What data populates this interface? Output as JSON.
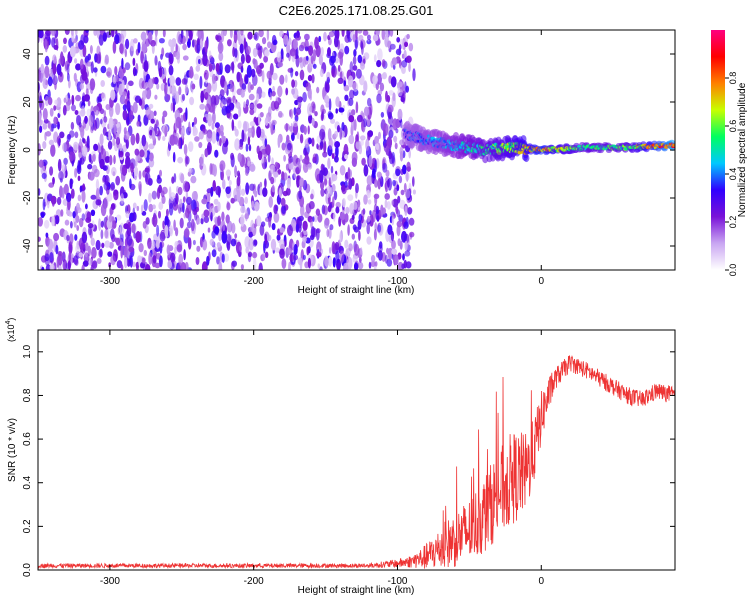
{
  "title": "C2E6.2025.171.08.25.G01",
  "chart_data": [
    {
      "type": "heatmap",
      "xlabel": "Height of straight line (km)",
      "ylabel": "Frequency (Hz)",
      "xlim": [
        -350,
        93
      ],
      "ylim": [
        -50,
        50
      ],
      "xticks": [
        -300,
        -200,
        -100,
        0
      ],
      "yticks": [
        -40,
        -20,
        0,
        20,
        40
      ],
      "colorbar": {
        "label": "Normalized spectral amplitude",
        "range": [
          0,
          1
        ],
        "ticks": [
          0.0,
          0.2,
          0.4,
          0.6,
          0.8
        ],
        "tick_labels": [
          "0.0",
          "0.2",
          "0.4",
          "0.6",
          "0.8"
        ],
        "colormap": [
          "#ffffff",
          "#c9a6f2",
          "#7a12d8",
          "#3000ff",
          "#00c8ff",
          "#00ff60",
          "#c8ff00",
          "#ff8000",
          "#ff0000",
          "#ff007f"
        ]
      },
      "noise_region_x": [
        -350,
        -90
      ],
      "noise_level": 0.3,
      "signal_trace": [
        {
          "x": -95,
          "y": 7,
          "amp": 0.35
        },
        {
          "x": -80,
          "y": 4,
          "amp": 0.4
        },
        {
          "x": -60,
          "y": 2,
          "amp": 0.45
        },
        {
          "x": -40,
          "y": 0,
          "amp": 0.55
        },
        {
          "x": -20,
          "y": 1,
          "amp": 0.65
        },
        {
          "x": 0,
          "y": 0,
          "amp": 0.8
        },
        {
          "x": 30,
          "y": 1,
          "amp": 0.55
        },
        {
          "x": 60,
          "y": 1,
          "amp": 0.6
        },
        {
          "x": 93,
          "y": 2,
          "amp": 0.95
        }
      ]
    },
    {
      "type": "line",
      "xlabel": "Height of straight line (km)",
      "ylabel": "SNR (10 * v/v)",
      "yscale_label": "(x10",
      "yscale_exp": "4",
      "xlim": [
        -350,
        93
      ],
      "ylim": [
        0,
        1.1
      ],
      "xticks": [
        -300,
        -200,
        -100,
        0
      ],
      "yticks": [
        0.0,
        0.2,
        0.4,
        0.6,
        0.8,
        1.0
      ],
      "ytick_labels": [
        "0.0",
        "0.2",
        "0.4",
        "0.6",
        "0.8",
        "1.0"
      ],
      "series": [
        {
          "color": "#ee3333",
          "x": [
            -350,
            -300,
            -250,
            -200,
            -150,
            -120,
            -100,
            -90,
            -80,
            -70,
            -60,
            -50,
            -40,
            -30,
            -20,
            -10,
            -5,
            0,
            5,
            10,
            20,
            30,
            40,
            50,
            60,
            70,
            80,
            93
          ],
          "y": [
            0.02,
            0.02,
            0.02,
            0.02,
            0.02,
            0.02,
            0.03,
            0.04,
            0.06,
            0.1,
            0.14,
            0.18,
            0.25,
            0.35,
            0.42,
            0.45,
            0.55,
            0.7,
            0.8,
            0.88,
            0.95,
            0.92,
            0.88,
            0.84,
            0.8,
            0.78,
            0.82,
            0.8
          ],
          "spread": [
            0.01,
            0.01,
            0.01,
            0.01,
            0.01,
            0.01,
            0.02,
            0.03,
            0.06,
            0.1,
            0.13,
            0.15,
            0.18,
            0.2,
            0.22,
            0.18,
            0.15,
            0.12,
            0.08,
            0.05,
            0.04,
            0.04,
            0.04,
            0.04,
            0.04,
            0.04,
            0.04,
            0.04
          ]
        }
      ]
    }
  ]
}
